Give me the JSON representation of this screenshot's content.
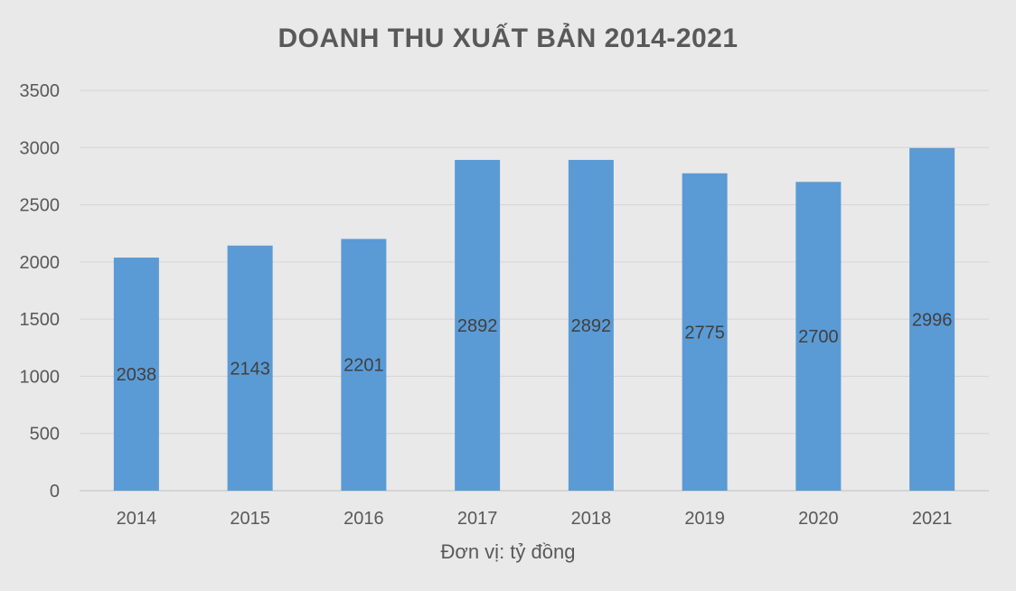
{
  "chart_data": {
    "type": "bar",
    "title": "DOANH THU XUẤT BẢN 2014-2021",
    "xlabel": "Đơn vị: tỷ đồng",
    "ylabel": "",
    "categories": [
      "2014",
      "2015",
      "2016",
      "2017",
      "2018",
      "2019",
      "2020",
      "2021"
    ],
    "values": [
      2038,
      2143,
      2201,
      2892,
      2892,
      2775,
      2700,
      2996
    ],
    "data_labels": [
      "2038",
      "2143",
      "2201",
      "2892",
      "2892",
      "2775",
      "2700",
      "2996"
    ],
    "ylim": [
      0,
      3500
    ],
    "yticks": [
      "0",
      "500",
      "1000",
      "1500",
      "2000",
      "2500",
      "3000",
      "3500"
    ],
    "grid": true,
    "legend": "none",
    "bar_color": "#5b9bd5",
    "background_color": "#e9e9e9"
  }
}
